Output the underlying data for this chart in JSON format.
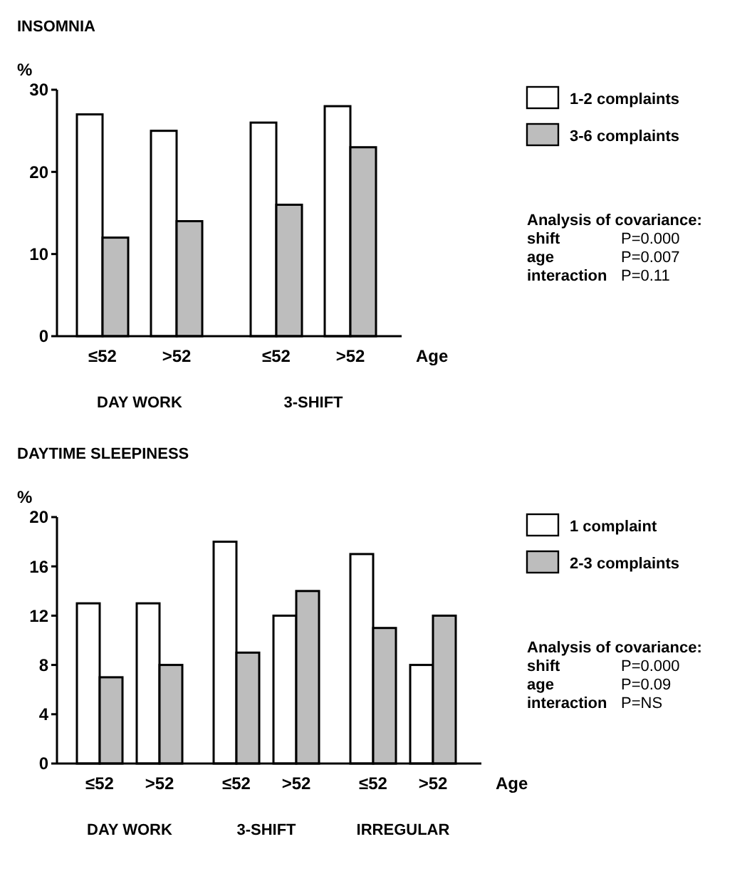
{
  "chart_data": [
    {
      "type": "bar",
      "title": "INSOMNIA",
      "ylabel": "%",
      "xlabel": "Age",
      "categories": [
        "≤52",
        ">52",
        "≤52",
        ">52"
      ],
      "series": [
        {
          "name": "1-2 complaints",
          "color": "#ffffff",
          "values": [
            27,
            25,
            26,
            28
          ]
        },
        {
          "name": "3-6 complaints",
          "color": "#bdbdbd",
          "values": [
            12,
            14,
            16,
            23
          ]
        }
      ],
      "ylim": [
        0,
        30
      ],
      "yticks": [
        0,
        10,
        20,
        30
      ],
      "legend": "right",
      "grid": false,
      "annotations": [
        "DAY WORK",
        "3-SHIFT",
        "Analysis of covariance:",
        "shift\tP=0.000",
        "age\tP=0.007",
        "interaction\tP=0.11"
      ]
    },
    {
      "type": "bar",
      "title": "DAYTIME SLEEPINESS",
      "ylabel": "%",
      "xlabel": "Age",
      "categories": [
        "≤52",
        ">52",
        "≤52",
        ">52",
        "≤52",
        ">52"
      ],
      "series": [
        {
          "name": "1 complaint",
          "color": "#ffffff",
          "values": [
            13,
            13,
            18,
            12,
            17,
            8
          ]
        },
        {
          "name": "2-3 complaints",
          "color": "#bdbdbd",
          "values": [
            7,
            8,
            9,
            14,
            11,
            12
          ]
        }
      ],
      "ylim": [
        0,
        20
      ],
      "yticks": [
        0,
        4,
        8,
        12,
        16,
        20
      ],
      "legend": "right",
      "grid": false,
      "annotations": [
        "DAY WORK",
        "3-SHIFT",
        "IRREGULAR",
        "Analysis of covariance:",
        "shift\tP=0.000",
        "age\tP=0.09",
        "interaction\tP=NS"
      ]
    }
  ]
}
